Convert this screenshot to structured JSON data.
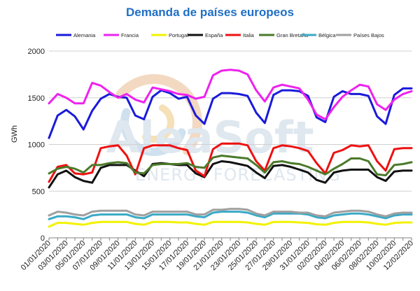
{
  "chart_data": {
    "type": "line",
    "title": "Demanda de países europeos",
    "ylabel": "GWh",
    "xlabel": "",
    "ylim": [
      0,
      2000
    ],
    "yticks": [
      0,
      500,
      1000,
      1500,
      2000
    ],
    "grid": true,
    "legend_position": "top",
    "watermark": {
      "line1": "AleaSoft",
      "line2": "ENERGY FORECASTING"
    },
    "x": [
      "01/01/2020",
      "02/01/2020",
      "03/01/2020",
      "04/01/2020",
      "05/01/2020",
      "06/01/2020",
      "07/01/2020",
      "08/01/2020",
      "09/01/2020",
      "10/01/2020",
      "11/01/2020",
      "12/01/2020",
      "13/01/2020",
      "14/01/2020",
      "15/01/2020",
      "16/01/2020",
      "17/01/2020",
      "18/01/2020",
      "19/01/2020",
      "20/01/2020",
      "21/01/2020",
      "22/01/2020",
      "23/01/2020",
      "24/01/2020",
      "25/01/2020",
      "26/01/2020",
      "27/01/2020",
      "28/01/2020",
      "29/01/2020",
      "30/01/2020",
      "31/01/2020",
      "01/02/2020",
      "02/02/2020",
      "03/02/2020",
      "04/02/2020",
      "05/02/2020",
      "06/02/2020",
      "07/02/2020",
      "08/02/2020",
      "09/02/2020",
      "10/02/2020",
      "11/02/2020",
      "12/02/2020"
    ],
    "xtick_labels": [
      "01/01/2020",
      "03/01/2020",
      "05/01/2020",
      "07/01/2020",
      "09/01/2020",
      "11/01/2020",
      "13/01/2020",
      "15/01/2020",
      "17/01/2020",
      "19/01/2020",
      "21/01/2020",
      "23/01/2020",
      "25/01/2020",
      "27/01/2020",
      "29/01/2020",
      "31/01/2020",
      "02/02/2020",
      "04/02/2020",
      "06/02/2020",
      "08/02/2020",
      "10/02/2020",
      "12/02/2020"
    ],
    "series": [
      {
        "name": "Alemania",
        "color": "#1a1adb",
        "values": [
          1070,
          1310,
          1370,
          1300,
          1160,
          1360,
          1490,
          1540,
          1510,
          1500,
          1310,
          1270,
          1510,
          1580,
          1550,
          1490,
          1510,
          1310,
          1220,
          1490,
          1550,
          1550,
          1540,
          1520,
          1340,
          1230,
          1530,
          1580,
          1580,
          1570,
          1520,
          1290,
          1240,
          1510,
          1570,
          1540,
          1540,
          1520,
          1300,
          1220,
          1530,
          1600,
          1600
        ]
      },
      {
        "name": "Francia",
        "color": "#ee22ee",
        "values": [
          1440,
          1540,
          1500,
          1440,
          1440,
          1660,
          1630,
          1560,
          1500,
          1540,
          1480,
          1450,
          1610,
          1590,
          1570,
          1540,
          1530,
          1490,
          1510,
          1740,
          1790,
          1800,
          1790,
          1750,
          1580,
          1460,
          1610,
          1640,
          1620,
          1600,
          1480,
          1320,
          1270,
          1400,
          1510,
          1580,
          1640,
          1620,
          1430,
          1370,
          1480,
          1540,
          1570
        ]
      },
      {
        "name": "Portugal",
        "color": "#f2f200",
        "values": [
          120,
          160,
          160,
          150,
          140,
          160,
          170,
          170,
          170,
          170,
          150,
          140,
          170,
          170,
          170,
          165,
          165,
          150,
          140,
          170,
          170,
          170,
          170,
          165,
          150,
          140,
          170,
          170,
          170,
          165,
          160,
          145,
          140,
          160,
          170,
          170,
          170,
          165,
          150,
          140,
          160,
          165,
          165
        ]
      },
      {
        "name": "España",
        "color": "#111111",
        "values": [
          540,
          680,
          720,
          650,
          610,
          590,
          750,
          780,
          780,
          780,
          720,
          660,
          790,
          800,
          790,
          780,
          780,
          690,
          650,
          790,
          820,
          810,
          790,
          770,
          700,
          640,
          770,
          780,
          760,
          730,
          700,
          620,
          590,
          700,
          720,
          730,
          730,
          730,
          650,
          610,
          710,
          720,
          720
        ]
      },
      {
        "name": "Italia",
        "color": "#ee1111",
        "values": [
          600,
          760,
          780,
          690,
          680,
          700,
          960,
          980,
          990,
          880,
          680,
          960,
          990,
          990,
          990,
          960,
          940,
          720,
          660,
          950,
          1010,
          1010,
          1010,
          990,
          820,
          720,
          960,
          990,
          980,
          960,
          930,
          800,
          690,
          910,
          940,
          990,
          980,
          990,
          820,
          720,
          950,
          960,
          960
        ]
      },
      {
        "name": "Gran Bretaña",
        "color": "#4a7a2a",
        "values": [
          690,
          740,
          760,
          740,
          700,
          780,
          780,
          800,
          810,
          800,
          700,
          690,
          780,
          790,
          790,
          790,
          800,
          760,
          750,
          860,
          880,
          870,
          860,
          850,
          780,
          700,
          810,
          820,
          800,
          790,
          760,
          720,
          680,
          740,
          790,
          850,
          850,
          820,
          680,
          670,
          780,
          790,
          810
        ]
      },
      {
        "name": "Bélgica",
        "color": "#3aaac6",
        "values": [
          200,
          230,
          230,
          220,
          200,
          240,
          250,
          250,
          250,
          250,
          220,
          210,
          250,
          250,
          250,
          250,
          250,
          230,
          220,
          270,
          280,
          280,
          280,
          270,
          240,
          220,
          260,
          260,
          260,
          260,
          250,
          220,
          210,
          240,
          250,
          260,
          260,
          250,
          230,
          210,
          240,
          250,
          250
        ]
      },
      {
        "name": "Países Bajos",
        "color": "#a0a0a0",
        "values": [
          240,
          280,
          270,
          250,
          240,
          280,
          290,
          290,
          290,
          290,
          250,
          240,
          280,
          280,
          280,
          280,
          280,
          250,
          250,
          300,
          300,
          310,
          310,
          300,
          260,
          240,
          280,
          280,
          280,
          270,
          270,
          240,
          230,
          270,
          280,
          290,
          290,
          280,
          250,
          230,
          260,
          270,
          270
        ]
      }
    ]
  }
}
